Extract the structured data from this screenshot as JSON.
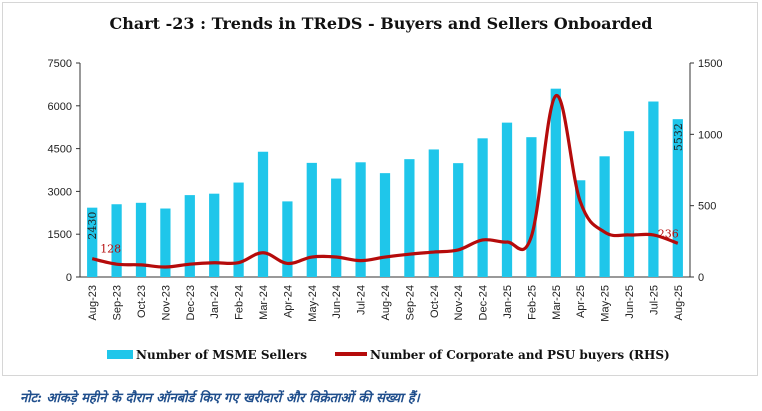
{
  "chart_data": {
    "type": "bar+line",
    "title": "Chart -23 : Trends in TReDS - Buyers and Sellers Onboarded",
    "categories": [
      "Aug-23",
      "Sep-23",
      "Oct-23",
      "Nov-23",
      "Dec-23",
      "Jan-24",
      "Feb-24",
      "Mar-24",
      "Apr-24",
      "May-24",
      "Jun-24",
      "Jul-24",
      "Aug-24",
      "Sep-24",
      "Oct-24",
      "Nov-24",
      "Dec-24",
      "Jan-25",
      "Feb-25",
      "Mar-25",
      "Apr-25",
      "May-25",
      "Jun-25",
      "Jul-25",
      "Aug-25"
    ],
    "series": [
      {
        "name": "Number of MSME Sellers",
        "type": "bar",
        "axis": "left",
        "color": "#1fc6ea",
        "values": [
          2430,
          2550,
          2600,
          2400,
          2870,
          2920,
          3310,
          4390,
          2650,
          4000,
          3450,
          4020,
          3640,
          4130,
          4470,
          3990,
          4860,
          5410,
          4900,
          6600,
          3390,
          4230,
          5110,
          6150,
          5532
        ]
      },
      {
        "name": "Number of Corporate and PSU buyers (RHS)",
        "type": "line",
        "axis": "right",
        "color": "#b50b0b",
        "values": [
          128,
          90,
          85,
          70,
          90,
          100,
          100,
          170,
          95,
          140,
          140,
          115,
          140,
          160,
          175,
          190,
          260,
          245,
          285,
          1270,
          530,
          315,
          295,
          295,
          236
        ]
      }
    ],
    "left_axis": {
      "min": 0,
      "max": 7500,
      "ticks": [
        0,
        1500,
        3000,
        4500,
        6000,
        7500
      ]
    },
    "right_axis": {
      "min": 0,
      "max": 1500,
      "ticks": [
        0,
        500,
        1000,
        1500
      ]
    },
    "data_labels": [
      {
        "text": "2430",
        "series": 0,
        "index": 0
      },
      {
        "text": "128",
        "series": 1,
        "index": 0
      },
      {
        "text": "5532",
        "series": 0,
        "index": 24
      },
      {
        "text": "236",
        "series": 1,
        "index": 24
      }
    ]
  },
  "note": "नोट: आंकड़े महीने के दौरान ऑनबोर्ड किए गए खरीदारों और विक्रेताओं की संख्या हैं।"
}
